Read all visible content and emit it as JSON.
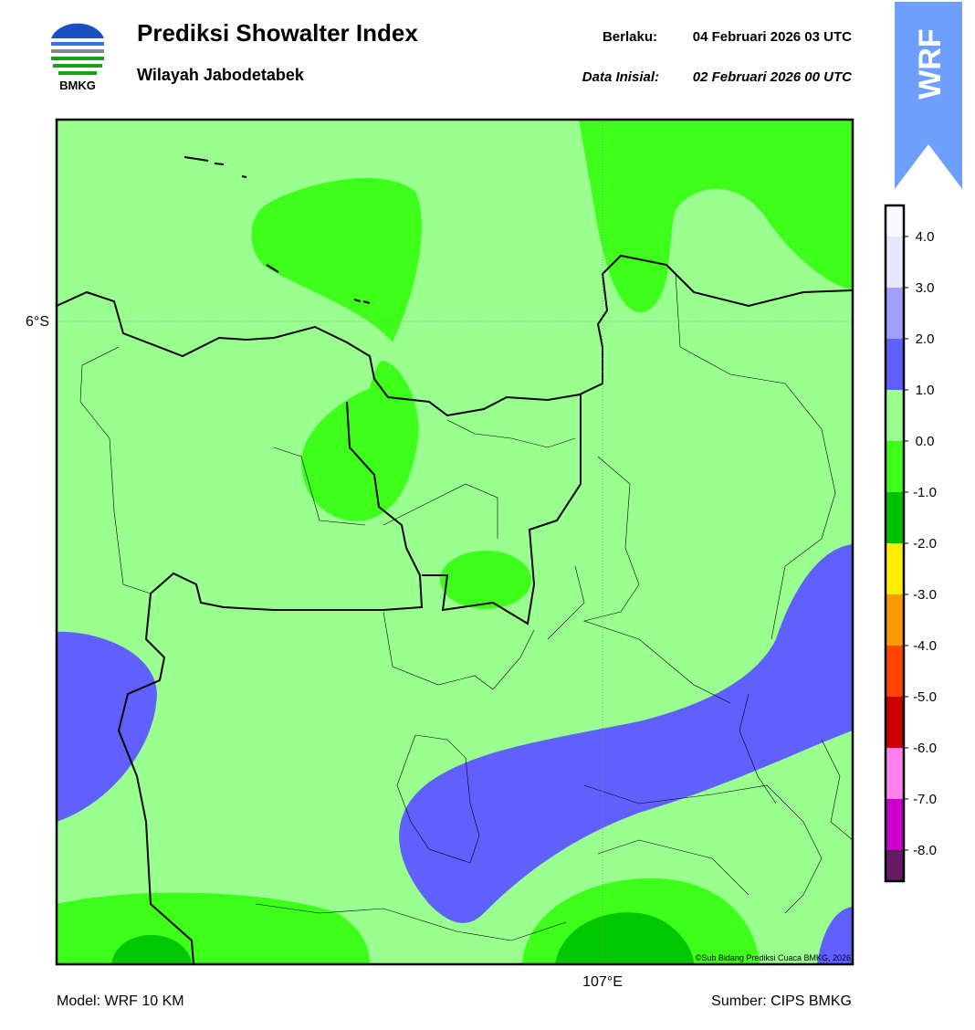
{
  "header": {
    "title": "Prediksi Showalter Index",
    "subtitle": "Wilayah Jabodetabek",
    "valid_label": "Berlaku:",
    "valid_time": "04 Februari 2026 03 UTC",
    "init_label": "Data Inisial:",
    "init_time": "02 Februari 2026 00 UTC",
    "logo_text": "BMKG",
    "badge": "WRF"
  },
  "map": {
    "lat_label": "6°S",
    "lon_label": "107°E",
    "copyright": "©Sub Bidang Prediksi Cuaca BMKG, 2026"
  },
  "colorbar": {
    "labels": [
      "4.0",
      "3.0",
      "2.0",
      "1.0",
      "0.0",
      "-1.0",
      "-2.0",
      "-3.0",
      "-4.0",
      "-5.0",
      "-6.0",
      "-7.0",
      "-8.0"
    ]
  },
  "footer": {
    "model": "Model: WRF 10 KM",
    "source": "Sumber: CIPS BMKG"
  }
}
